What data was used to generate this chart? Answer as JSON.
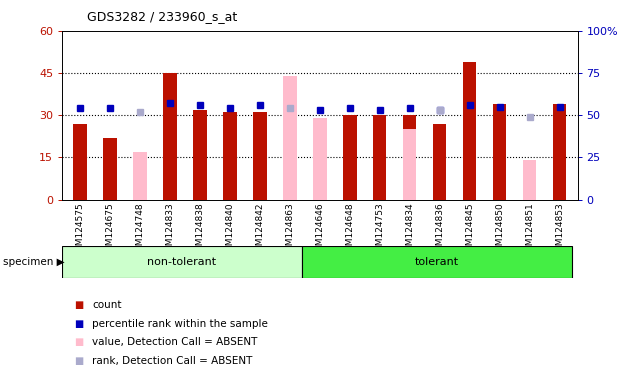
{
  "title": "GDS3282 / 233960_s_at",
  "samples": [
    "GSM124575",
    "GSM124675",
    "GSM124748",
    "GSM124833",
    "GSM124838",
    "GSM124840",
    "GSM124842",
    "GSM124863",
    "GSM124646",
    "GSM124648",
    "GSM124753",
    "GSM124834",
    "GSM124836",
    "GSM124845",
    "GSM124850",
    "GSM124851",
    "GSM124853"
  ],
  "non_tolerant_count": 8,
  "red_bars": [
    27,
    22,
    null,
    45,
    32,
    31,
    31,
    null,
    null,
    30,
    30,
    30,
    27,
    49,
    34,
    null,
    34
  ],
  "pink_bars": [
    null,
    null,
    17,
    null,
    null,
    null,
    null,
    44,
    29,
    null,
    null,
    25,
    null,
    null,
    null,
    14,
    null
  ],
  "blue_sq": [
    54,
    54,
    null,
    57,
    56,
    54,
    56,
    null,
    53,
    54,
    53,
    54,
    53,
    56,
    55,
    null,
    55
  ],
  "lavender_sq": [
    null,
    null,
    52,
    null,
    null,
    null,
    null,
    54,
    null,
    null,
    null,
    null,
    53,
    null,
    null,
    49,
    null
  ],
  "ylim_left": [
    0,
    60
  ],
  "ylim_right": [
    0,
    100
  ],
  "yticks_left": [
    0,
    15,
    30,
    45,
    60
  ],
  "yticks_right": [
    0,
    25,
    50,
    75,
    100
  ],
  "bar_color_red": "#bb1100",
  "bar_color_pink": "#ffbbcc",
  "square_color_blue": "#0000bb",
  "square_color_lav": "#aaaacc",
  "group_color_nontol": "#ccffcc",
  "group_color_tol": "#44ee44",
  "legend_labels": [
    "count",
    "percentile rank within the sample",
    "value, Detection Call = ABSENT",
    "rank, Detection Call = ABSENT"
  ],
  "legend_colors": [
    "#bb1100",
    "#0000bb",
    "#ffbbcc",
    "#aaaacc"
  ]
}
